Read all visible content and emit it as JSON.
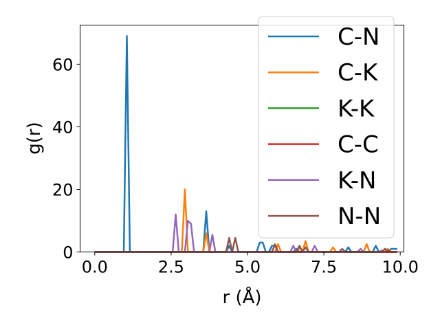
{
  "chart_data": {
    "type": "line",
    "xlabel": "r (Å)",
    "ylabel": "g(r)",
    "xlim": [
      -0.48,
      10.12
    ],
    "ylim": [
      0,
      72.5
    ],
    "xticks": [
      "0.0",
      "2.5",
      "5.0",
      "7.5",
      "10.0"
    ],
    "xtick_values": [
      0,
      2.5,
      5,
      7.5,
      10
    ],
    "yticks": [
      "0",
      "20",
      "40",
      "60"
    ],
    "ytick_values": [
      0,
      20,
      40,
      60
    ],
    "legend_position": "upper-right",
    "series": [
      {
        "name": "C-N",
        "color": "#1f77b4",
        "x": [
          0,
          0.95,
          1.05,
          1.15,
          1.25,
          3.55,
          3.65,
          3.75,
          3.85,
          4.3,
          4.4,
          4.5,
          5.3,
          5.4,
          5.5,
          5.6,
          5.7,
          5.8,
          5.9,
          6.0,
          6.1,
          6.2,
          6.3,
          6.5,
          6.6,
          6.7,
          8.2,
          8.3,
          8.4,
          9.1,
          9.2,
          9.3,
          9.6,
          9.7,
          9.8,
          9.9
        ],
        "y": [
          0,
          0,
          69,
          0,
          0,
          0,
          13,
          0,
          0,
          0,
          2,
          0,
          0,
          3,
          3,
          0,
          0,
          2,
          2,
          0,
          0,
          0,
          0,
          0,
          1,
          0,
          0,
          1.5,
          0,
          0,
          2,
          0,
          0,
          1,
          1,
          1
        ]
      },
      {
        "name": "C-K",
        "color": "#ff7f0e",
        "x": [
          0,
          2.85,
          2.95,
          3.05,
          3.55,
          3.65,
          3.75,
          3.85,
          5.9,
          6.0,
          6.1,
          6.6,
          6.7,
          6.8,
          6.9,
          7.0,
          7.1,
          7.7,
          7.8,
          7.9,
          8.8,
          8.9,
          9.0,
          9.5,
          9.6,
          9.7,
          9.9
        ],
        "y": [
          0,
          0,
          20,
          0,
          0,
          6,
          0,
          0,
          0,
          2.5,
          0,
          0,
          1.5,
          0,
          3.5,
          0,
          0,
          0,
          1.5,
          0,
          0,
          2.5,
          0,
          0,
          1,
          0,
          0
        ]
      },
      {
        "name": "K-K",
        "color": "#2ca02c",
        "x": [
          0,
          9.9
        ],
        "y": [
          0,
          0
        ]
      },
      {
        "name": "C-C",
        "color": "#d62728",
        "x": [
          0,
          9.9
        ],
        "y": [
          0,
          0
        ]
      },
      {
        "name": "K-N",
        "color": "#9467bd",
        "x": [
          0,
          2.55,
          2.65,
          2.75,
          2.95,
          3.05,
          3.15,
          3.25,
          3.75,
          3.85,
          3.95,
          6.4,
          6.5,
          6.6,
          6.7,
          6.8,
          7.1,
          7.2,
          7.3,
          8.6,
          8.7,
          8.8,
          9.3,
          9.4,
          9.5
        ],
        "y": [
          0,
          0,
          12,
          0,
          0,
          10,
          9,
          0,
          0,
          5.5,
          0,
          0,
          2,
          0,
          2,
          0,
          0,
          2,
          0,
          0,
          1,
          0,
          0,
          0.5,
          0
        ]
      },
      {
        "name": "N-N",
        "color": "#8c564b",
        "x": [
          0,
          4.3,
          4.4,
          4.5,
          4.6,
          4.7,
          4.8,
          5.8,
          5.9,
          6.0,
          6.6,
          6.7,
          6.8,
          6.9,
          7.0,
          8.0,
          8.1,
          8.2,
          9.4,
          9.5,
          9.6,
          9.7
        ],
        "y": [
          0,
          0,
          4.5,
          0,
          4.5,
          0,
          0,
          0,
          2.5,
          0,
          0,
          2,
          0,
          1.5,
          0,
          0,
          1,
          0,
          0,
          1,
          0.5,
          0
        ]
      }
    ]
  }
}
